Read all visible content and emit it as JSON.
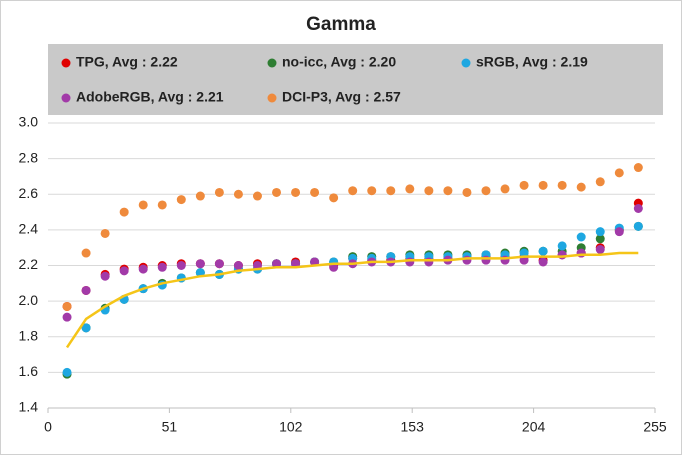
{
  "chart_data": {
    "type": "scatter",
    "title": "Gamma",
    "x": [
      8,
      16,
      24,
      32,
      40,
      48,
      56,
      64,
      72,
      80,
      88,
      96,
      104,
      112,
      120,
      128,
      136,
      144,
      152,
      160,
      168,
      176,
      184,
      192,
      200,
      208,
      216,
      224,
      232,
      240,
      248
    ],
    "series": [
      {
        "name": "TPG, Avg : 2.22",
        "color": "#e00000",
        "values": [
          1.97,
          2.06,
          2.15,
          2.18,
          2.19,
          2.2,
          2.21,
          2.21,
          2.21,
          2.2,
          2.21,
          2.21,
          2.22,
          2.22,
          2.2,
          2.24,
          2.23,
          2.23,
          2.24,
          2.24,
          2.24,
          2.25,
          2.25,
          2.25,
          2.25,
          2.23,
          2.26,
          2.27,
          2.3,
          2.4,
          2.55
        ]
      },
      {
        "name": "no-icc, Avg : 2.20",
        "color": "#2e7d32",
        "values": [
          1.59,
          1.85,
          1.96,
          2.01,
          2.07,
          2.1,
          2.13,
          2.16,
          2.15,
          2.18,
          2.18,
          2.21,
          2.21,
          2.22,
          2.22,
          2.25,
          2.25,
          2.25,
          2.26,
          2.26,
          2.26,
          2.26,
          2.26,
          2.27,
          2.28,
          2.28,
          2.28,
          2.3,
          2.35,
          2.4,
          2.42
        ]
      },
      {
        "name": "sRGB, Avg : 2.19",
        "color": "#1ea7e1",
        "values": [
          1.6,
          1.85,
          1.95,
          2.01,
          2.07,
          2.09,
          2.13,
          2.16,
          2.15,
          2.18,
          2.18,
          2.21,
          2.21,
          2.22,
          2.22,
          2.24,
          2.24,
          2.25,
          2.25,
          2.25,
          2.25,
          2.25,
          2.26,
          2.26,
          2.27,
          2.28,
          2.31,
          2.36,
          2.39,
          2.41,
          2.42
        ]
      },
      {
        "name": "AdobeRGB, Avg : 2.21",
        "color": "#a23aa8",
        "values": [
          1.91,
          2.06,
          2.14,
          2.17,
          2.18,
          2.19,
          2.2,
          2.21,
          2.21,
          2.2,
          2.2,
          2.21,
          2.21,
          2.22,
          2.19,
          2.21,
          2.22,
          2.22,
          2.22,
          2.22,
          2.23,
          2.23,
          2.23,
          2.23,
          2.23,
          2.22,
          2.26,
          2.27,
          2.29,
          2.39,
          2.52
        ]
      },
      {
        "name": "DCI-P3, Avg : 2.57",
        "color": "#ef8a3c",
        "values": [
          1.97,
          2.27,
          2.38,
          2.5,
          2.54,
          2.54,
          2.57,
          2.59,
          2.61,
          2.6,
          2.59,
          2.61,
          2.61,
          2.61,
          2.58,
          2.62,
          2.62,
          2.62,
          2.63,
          2.62,
          2.62,
          2.61,
          2.62,
          2.63,
          2.65,
          2.65,
          2.65,
          2.64,
          2.67,
          2.72,
          2.75
        ]
      },
      {
        "type": "line",
        "color": "#f5c518",
        "values": [
          1.74,
          1.9,
          1.97,
          2.03,
          2.07,
          2.1,
          2.12,
          2.14,
          2.15,
          2.17,
          2.18,
          2.19,
          2.19,
          2.2,
          2.21,
          2.21,
          2.22,
          2.22,
          2.23,
          2.23,
          2.23,
          2.24,
          2.24,
          2.24,
          2.25,
          2.25,
          2.25,
          2.26,
          2.26,
          2.27,
          2.27
        ]
      }
    ],
    "xlim": [
      0,
      255
    ],
    "xticks": [
      0,
      51,
      102,
      153,
      204,
      255
    ],
    "ylim": [
      1.4,
      3.0
    ],
    "yticks": [
      {
        "value": 1.4,
        "label": "1.4"
      },
      {
        "value": 1.6,
        "label": "1.6"
      },
      {
        "value": 1.8,
        "label": "1.8"
      },
      {
        "value": 2.0,
        "label": "2.0"
      },
      {
        "value": 2.2,
        "label": "2.2"
      },
      {
        "value": 2.4,
        "label": "2.4"
      },
      {
        "value": 2.6,
        "label": "2.6"
      },
      {
        "value": 2.8,
        "label": "2.8"
      },
      {
        "value": 3.0,
        "label": "3.0"
      }
    ],
    "grid": true,
    "legend": "top"
  }
}
